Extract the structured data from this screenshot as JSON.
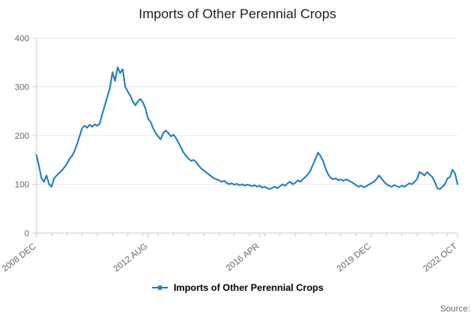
{
  "page": {
    "title": "Imports of Other Perennial Crops"
  },
  "footer": {
    "source": "Source:"
  },
  "chart_data": {
    "type": "line",
    "title": "Imports of Other Perennial Crops",
    "legend": "Imports of Other Perennial Crops",
    "series_name": "Imports of Other Perennial Crops",
    "color": "#1f80b8",
    "axis_color": "#cccccc",
    "grid_color": "#e6e6e6",
    "tick_text_color": "#666666",
    "frequency": "monthly",
    "x_start": "2008 DEC",
    "x_end": "2022 OCT",
    "ylim": [
      0,
      400
    ],
    "yticks": [
      0,
      100,
      200,
      300,
      400
    ],
    "grid": "horizontal",
    "legend_position": "bottom",
    "x_ticks": [
      {
        "index": 0,
        "label": "2008 DEC"
      },
      {
        "index": 44,
        "label": "2012 AUG"
      },
      {
        "index": 88,
        "label": "2016 APR"
      },
      {
        "index": 132,
        "label": "2019 DEC"
      },
      {
        "index": 166,
        "label": "2022 OCT"
      }
    ],
    "values": [
      160,
      138,
      112,
      105,
      118,
      100,
      95,
      112,
      118,
      123,
      128,
      135,
      142,
      152,
      158,
      168,
      182,
      198,
      215,
      220,
      216,
      222,
      218,
      223,
      220,
      225,
      245,
      262,
      280,
      298,
      330,
      312,
      340,
      328,
      336,
      300,
      290,
      282,
      270,
      262,
      270,
      275,
      268,
      255,
      235,
      228,
      215,
      205,
      198,
      192,
      205,
      210,
      205,
      198,
      202,
      195,
      185,
      175,
      165,
      158,
      152,
      148,
      150,
      145,
      138,
      132,
      128,
      124,
      120,
      116,
      112,
      110,
      108,
      105,
      107,
      103,
      100,
      102,
      99,
      101,
      98,
      100,
      97,
      99,
      98,
      96,
      98,
      95,
      97,
      93,
      95,
      92,
      90,
      93,
      95,
      92,
      96,
      100,
      97,
      102,
      105,
      100,
      103,
      108,
      105,
      110,
      115,
      120,
      128,
      140,
      152,
      165,
      158,
      148,
      132,
      120,
      113,
      110,
      112,
      108,
      110,
      107,
      110,
      108,
      105,
      102,
      98,
      95,
      97,
      94,
      96,
      99,
      102,
      105,
      110,
      118,
      112,
      105,
      100,
      97,
      95,
      98,
      96,
      94,
      97,
      95,
      98,
      102,
      100,
      105,
      110,
      125,
      122,
      118,
      125,
      120,
      115,
      105,
      92,
      90,
      95,
      100,
      112,
      115,
      130,
      122,
      100
    ]
  }
}
